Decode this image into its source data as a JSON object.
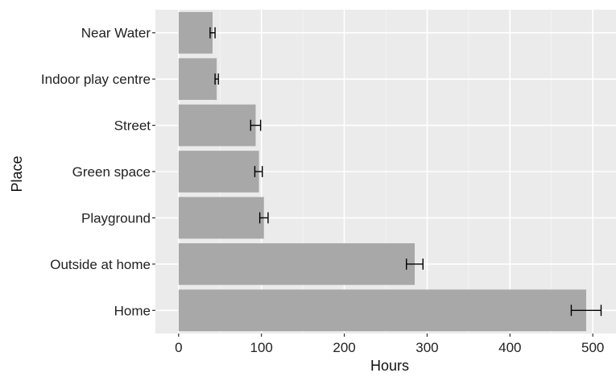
{
  "chart_data": {
    "type": "bar",
    "orientation": "horizontal",
    "title": "",
    "xlabel": "Hours",
    "ylabel": "Place",
    "categories": [
      "Near Water",
      "Indoor play centre",
      "Street",
      "Green space",
      "Playground",
      "Outside at home",
      "Home"
    ],
    "values": [
      41,
      46,
      93,
      97,
      103,
      285,
      492
    ],
    "error_low": [
      38,
      44,
      87,
      92,
      98,
      275,
      474
    ],
    "error_high": [
      44,
      48,
      99,
      101,
      108,
      295,
      510
    ],
    "xlim": [
      -28,
      528
    ],
    "xticks": [
      0,
      100,
      200,
      300,
      400,
      500
    ],
    "xtick_labels": [
      "0",
      "100",
      "200",
      "300",
      "400",
      "500"
    ],
    "grid": true,
    "legend": "none",
    "colors": {
      "bar": "#a8a8a8",
      "panel": "#ebebeb",
      "grid_major": "#ffffff",
      "grid_minor": "#f5f5f5",
      "errorbar": "#000000"
    }
  }
}
